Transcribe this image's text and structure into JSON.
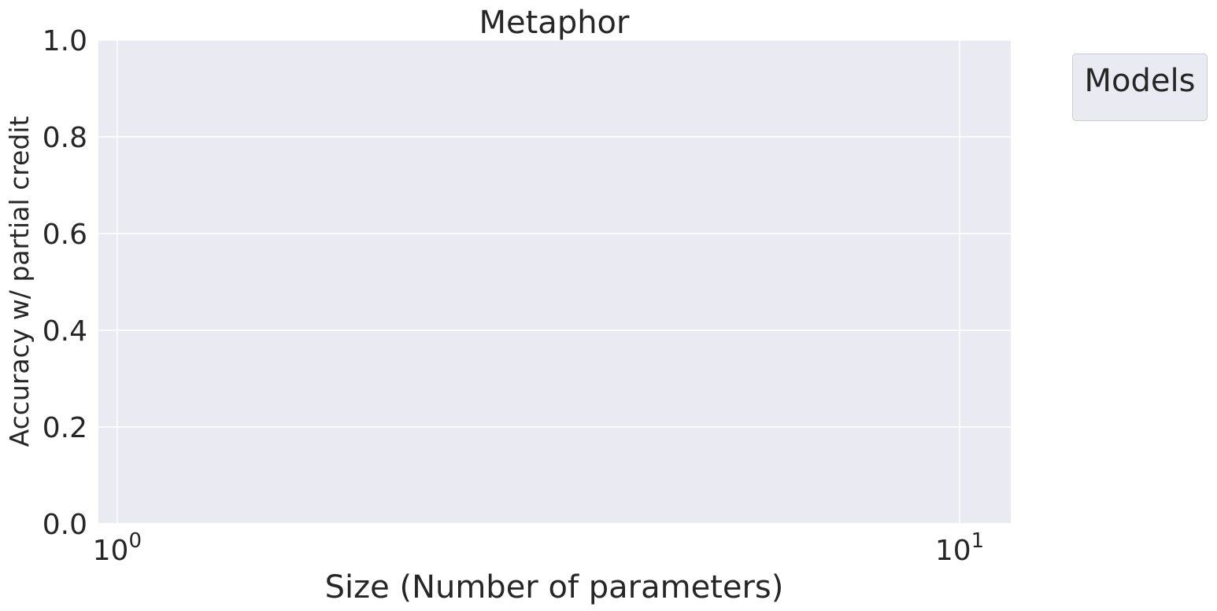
{
  "chart_data": {
    "type": "line",
    "title": "Metaphor",
    "xlabel": "Size (Number of parameters)",
    "ylabel": "Accuracy w/ partial credit",
    "x_scale": "log",
    "xlim": [
      0.95,
      11.5
    ],
    "ylim": [
      0,
      1
    ],
    "x_ticks": [
      {
        "value": 1,
        "base": "10",
        "exp": "0"
      },
      {
        "value": 10,
        "base": "10",
        "exp": "1"
      }
    ],
    "y_ticks": [
      {
        "value": 0.0,
        "label": "0.0"
      },
      {
        "value": 0.2,
        "label": "0.2"
      },
      {
        "value": 0.4,
        "label": "0.4"
      },
      {
        "value": 0.6,
        "label": "0.6"
      },
      {
        "value": 0.8,
        "label": "0.8"
      },
      {
        "value": 1.0,
        "label": "1.0"
      }
    ],
    "grid": true,
    "series": [],
    "legend": {
      "title": "Models",
      "placement": "outside-top-right"
    },
    "colors": {
      "plot_background": "#eaeaf2",
      "grid": "#ffffff",
      "text": "#262626"
    }
  }
}
